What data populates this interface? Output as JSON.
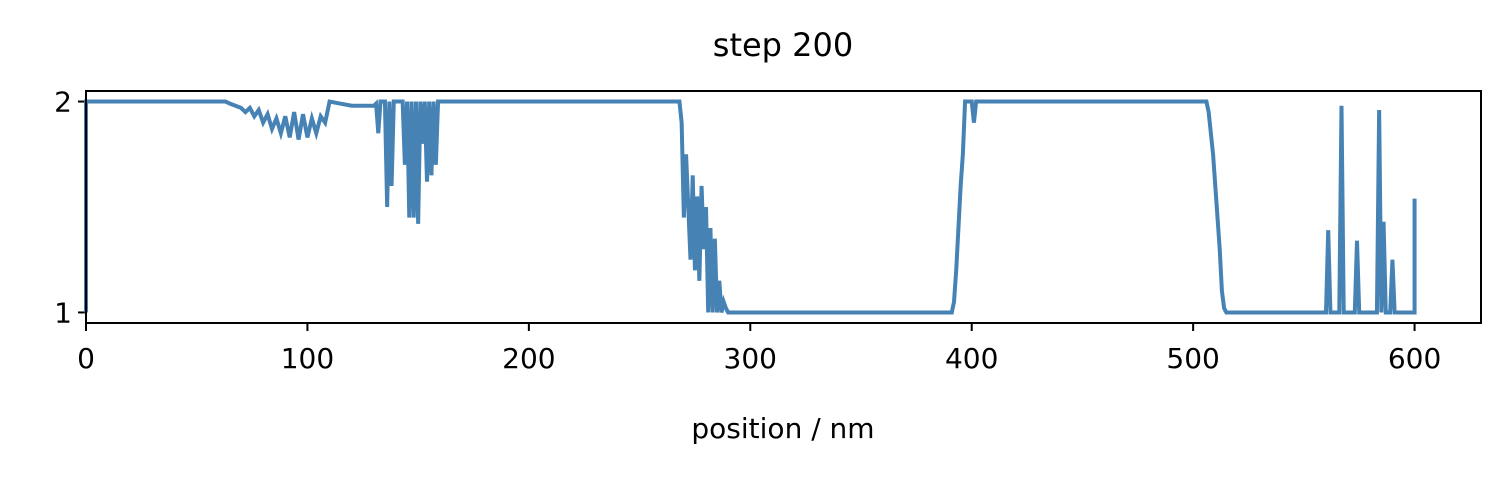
{
  "chart_data": {
    "type": "line",
    "title": "step 200",
    "x_label": "position / nm",
    "x": [
      0,
      0,
      63,
      65,
      70,
      72,
      74,
      76,
      78,
      80,
      82,
      84,
      86,
      88,
      90,
      92,
      94,
      96,
      98,
      100,
      102,
      104,
      106,
      108,
      110,
      115,
      120,
      125,
      130,
      131,
      132,
      133,
      135,
      136,
      137,
      138,
      139,
      143,
      144,
      145,
      146,
      147,
      148,
      149,
      150,
      151,
      152,
      153,
      154,
      155,
      156,
      157,
      158,
      159,
      268,
      269,
      270,
      271,
      272,
      273,
      274,
      275,
      276,
      277,
      278,
      279,
      280,
      281,
      282,
      283,
      284,
      285,
      286,
      287,
      288,
      289,
      290,
      391,
      392,
      393,
      394,
      395,
      396,
      397,
      400,
      401,
      402,
      506,
      507,
      508,
      509,
      510,
      511,
      512,
      513,
      514,
      515,
      560,
      561,
      562,
      566,
      567,
      568,
      573,
      574,
      575,
      583,
      584,
      585,
      586,
      587,
      589,
      590,
      591,
      600,
      600
    ],
    "series": [
      {
        "name": "step",
        "color": "#4682b4",
        "values": [
          1,
          2,
          2,
          1.99,
          1.97,
          1.95,
          1.97,
          1.93,
          1.96,
          1.9,
          1.94,
          1.87,
          1.92,
          1.85,
          1.93,
          1.83,
          1.95,
          1.82,
          1.94,
          1.83,
          1.92,
          1.85,
          1.93,
          1.9,
          2,
          1.99,
          1.98,
          1.98,
          1.98,
          1.99,
          1.85,
          2,
          2,
          1.5,
          2,
          1.6,
          2,
          2,
          1.7,
          2,
          1.45,
          2,
          1.45,
          2,
          1.42,
          2,
          1.8,
          2,
          1.62,
          2,
          1.65,
          2,
          1.7,
          2,
          2,
          1.9,
          1.45,
          1.75,
          1.5,
          1.25,
          1.65,
          1.2,
          1.55,
          1.15,
          1.6,
          1.3,
          1.5,
          1,
          1.4,
          1,
          1.35,
          1,
          1.15,
          1,
          1.05,
          1.02,
          1,
          1,
          1.05,
          1.2,
          1.4,
          1.6,
          1.75,
          2,
          2,
          1.9,
          2,
          2,
          1.95,
          1.85,
          1.75,
          1.6,
          1.45,
          1.3,
          1.1,
          1.02,
          1,
          1,
          1.39,
          1,
          1,
          1.98,
          1,
          1,
          1.34,
          1,
          1,
          1.96,
          1,
          1.43,
          1,
          1,
          1.25,
          1,
          1,
          1.54
        ]
      }
    ],
    "xlim": [
      0,
      630
    ],
    "ylim": [
      0.95,
      2.05
    ],
    "xticks": [
      0,
      100,
      200,
      300,
      400,
      500,
      600
    ],
    "yticks": [
      1,
      2
    ]
  }
}
